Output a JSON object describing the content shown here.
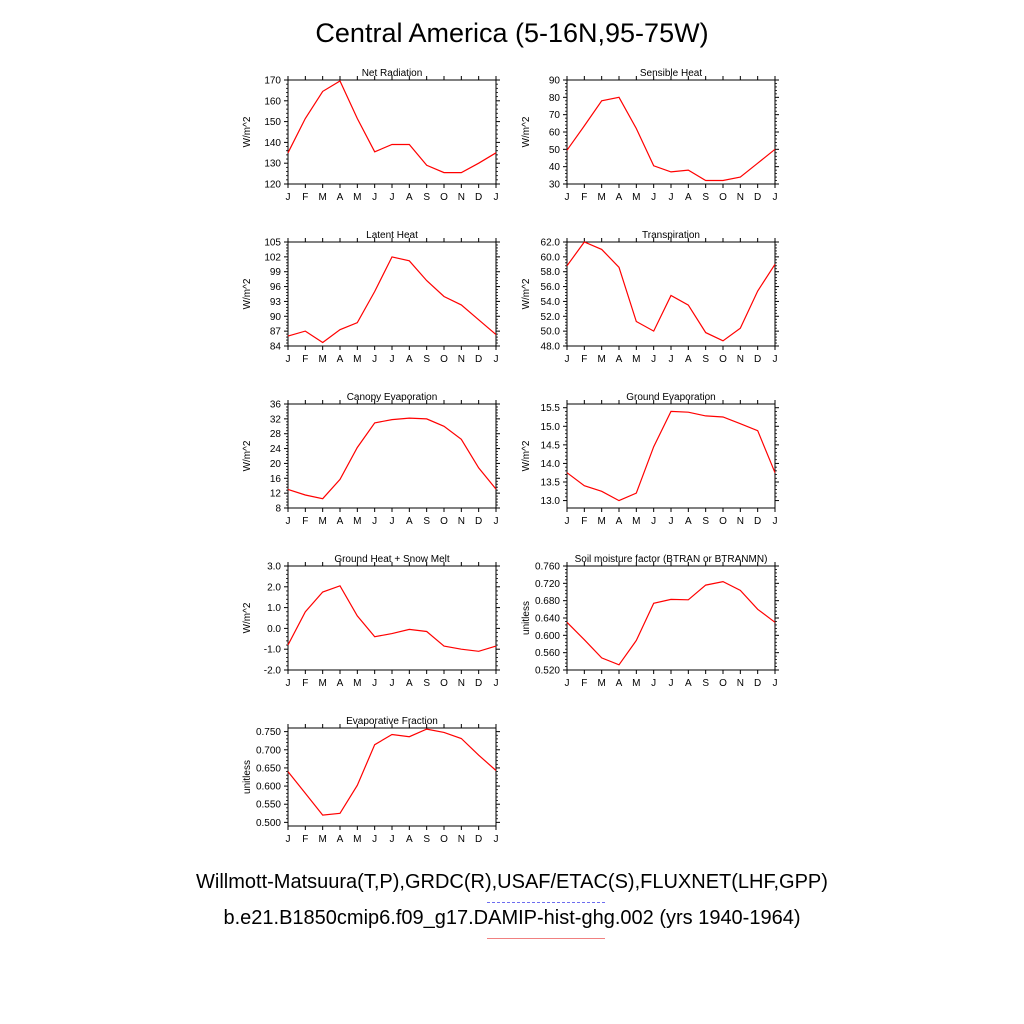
{
  "figure": {
    "title": "Central America (5-16N,95-75W)",
    "months": [
      "J",
      "F",
      "M",
      "A",
      "M",
      "J",
      "J",
      "A",
      "S",
      "O",
      "N",
      "D",
      "J"
    ],
    "legend": {
      "obs_label": "Willmott-Matsuura(T,P),GRDC(R),USAF/ETAC(S),FLUXNET(LHF,GPP)",
      "obs_color": "#0000ff",
      "model_label": "b.e21.B1850cmip6.f09_g17.DAMIP-hist-ghg.002 (yrs 1940-1964)",
      "model_color": "#ff0000"
    }
  },
  "chart_data": [
    {
      "type": "line",
      "title": "Net Radiation",
      "ylabel": "W/m^2",
      "ylim": [
        120,
        170
      ],
      "yticks": [
        "120",
        "130",
        "140",
        "150",
        "160",
        "170"
      ],
      "series": [
        {
          "values": [
            135,
            151.5,
            164.5,
            169.5,
            151.5,
            135.5,
            139,
            139,
            129,
            125.5,
            125.5,
            130,
            135
          ]
        }
      ]
    },
    {
      "type": "line",
      "title": "Sensible Heat",
      "ylabel": "W/m^2",
      "ylim": [
        30,
        90
      ],
      "yticks": [
        "30",
        "40",
        "50",
        "60",
        "70",
        "80",
        "90"
      ],
      "series": [
        {
          "values": [
            49.5,
            63.5,
            78,
            80,
            62,
            40.5,
            37,
            38,
            32,
            32,
            34,
            42,
            50
          ]
        }
      ]
    },
    {
      "type": "line",
      "title": "Latent Heat",
      "ylabel": "W/m^2",
      "ylim": [
        84,
        105
      ],
      "yticks": [
        "84",
        "87",
        "90",
        "93",
        "96",
        "99",
        "102",
        "105"
      ],
      "series": [
        {
          "values": [
            86,
            87,
            84.7,
            87.3,
            88.7,
            95,
            102,
            101.2,
            97.2,
            94,
            92.3,
            89.3,
            86.3
          ]
        }
      ]
    },
    {
      "type": "line",
      "title": "Transpiration",
      "ylabel": "W/m^2",
      "ylim": [
        48,
        62
      ],
      "yticks": [
        "48.0",
        "50.0",
        "52.0",
        "54.0",
        "56.0",
        "58.0",
        "60.0",
        "62.0"
      ],
      "series": [
        {
          "values": [
            58.8,
            62,
            61,
            58.6,
            51.3,
            50,
            54.8,
            53.5,
            49.8,
            48.7,
            50.4,
            55.4,
            59
          ]
        }
      ]
    },
    {
      "type": "line",
      "title": "Canopy Evaporation",
      "ylabel": "W/m^2",
      "ylim": [
        8,
        36
      ],
      "yticks": [
        "8",
        "12",
        "16",
        "20",
        "24",
        "28",
        "32",
        "36"
      ],
      "series": [
        {
          "values": [
            13,
            11.5,
            10.5,
            15.7,
            24.3,
            30.9,
            31.8,
            32.2,
            32,
            30,
            26.5,
            18.8,
            13.1
          ]
        }
      ]
    },
    {
      "type": "line",
      "title": "Ground Evaporation",
      "ylabel": "W/m^2",
      "ylim": [
        12.8,
        15.6
      ],
      "yticks": [
        "13.0",
        "13.5",
        "14.0",
        "14.5",
        "15.0",
        "15.5"
      ],
      "series": [
        {
          "values": [
            13.75,
            13.4,
            13.25,
            13,
            13.2,
            14.45,
            15.4,
            15.38,
            15.28,
            15.25,
            15.07,
            14.88,
            13.75
          ]
        }
      ]
    },
    {
      "type": "line",
      "title": "Ground Heat + Snow Melt",
      "ylabel": "W/m^2",
      "ylim": [
        -2,
        3
      ],
      "yticks": [
        "-2.0",
        "-1.0",
        "0.0",
        "1.0",
        "2.0",
        "3.0"
      ],
      "series": [
        {
          "values": [
            -0.8,
            0.8,
            1.75,
            2.05,
            0.6,
            -0.4,
            -0.25,
            -0.05,
            -0.15,
            -0.85,
            -1,
            -1.1,
            -0.85
          ]
        }
      ]
    },
    {
      "type": "line",
      "title": "Soil moisture factor (BTRAN or BTRANMN)",
      "ylabel": "unitless",
      "ylim": [
        0.52,
        0.76
      ],
      "yticks": [
        "0.520",
        "0.560",
        "0.600",
        "0.640",
        "0.680",
        "0.720",
        "0.760"
      ],
      "series": [
        {
          "values": [
            0.63,
            0.59,
            0.548,
            0.532,
            0.588,
            0.674,
            0.683,
            0.682,
            0.716,
            0.724,
            0.704,
            0.66,
            0.63
          ]
        }
      ]
    },
    {
      "type": "line",
      "title": "Evaporative Fraction",
      "ylabel": "unitless",
      "ylim": [
        0.49,
        0.76
      ],
      "yticks": [
        "0.500",
        "0.550",
        "0.600",
        "0.650",
        "0.700",
        "0.750"
      ],
      "series": [
        {
          "values": [
            0.64,
            0.58,
            0.52,
            0.525,
            0.602,
            0.714,
            0.742,
            0.736,
            0.757,
            0.748,
            0.731,
            0.685,
            0.643
          ]
        }
      ]
    }
  ]
}
